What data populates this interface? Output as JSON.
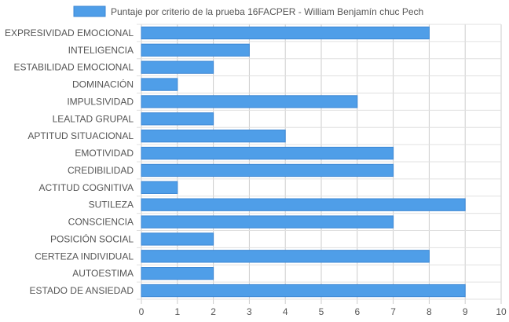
{
  "chart_data": {
    "type": "bar",
    "orientation": "horizontal",
    "categories": [
      "EXPRESIVIDAD EMOCIONAL",
      "INTELIGENCIA",
      "ESTABILIDAD EMOCIONAL",
      "DOMINACIÓN",
      "IMPULSIVIDAD",
      "LEALTAD GRUPAL",
      "APTITUD SITUACIONAL",
      "EMOTIVIDAD",
      "CREDIBILIDAD",
      "ACTITUD COGNITIVA",
      "SUTILEZA",
      "CONSCIENCIA",
      "POSICIÓN SOCIAL",
      "CERTEZA INDIVIDUAL",
      "AUTOESTIMA",
      "ESTADO DE ANSIEDAD"
    ],
    "series": [
      {
        "name": "Puntaje por criterio de la prueba 16FACPER - William Benjamín chuc Pech",
        "values": [
          8,
          3,
          2,
          1,
          6,
          2,
          4,
          7,
          7,
          1,
          9,
          7,
          2,
          8,
          2,
          9
        ]
      }
    ],
    "xlim": [
      0,
      10
    ],
    "x_ticks": [
      "0",
      "1",
      "2",
      "3",
      "4",
      "5",
      "6",
      "7",
      "8",
      "9",
      "10"
    ],
    "grid": true,
    "legend_position": "top",
    "colors": {
      "bar_fill": "#4f9ee8",
      "bar_stroke": "#3a86d4"
    }
  }
}
